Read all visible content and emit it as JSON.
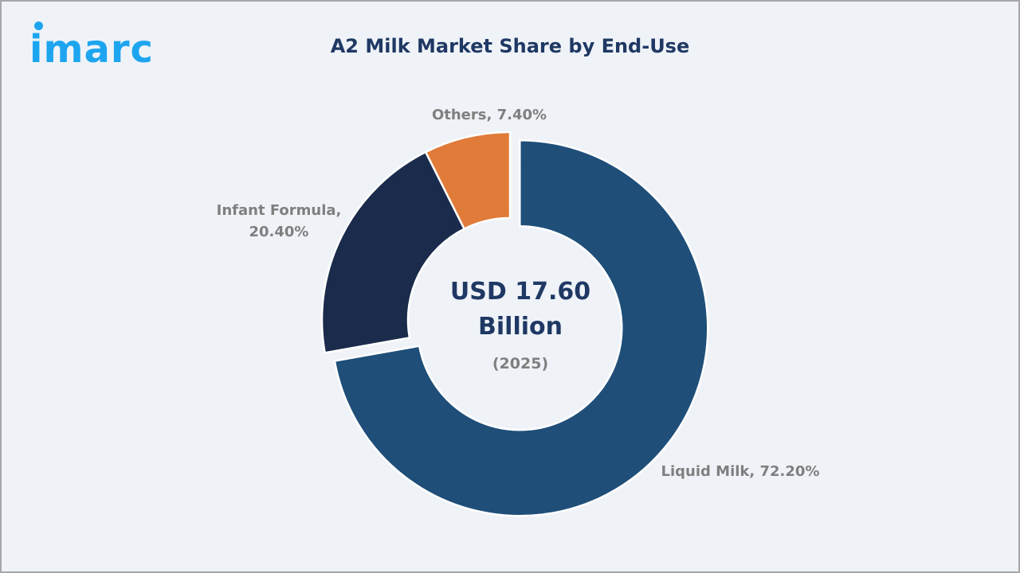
{
  "brand": {
    "logo_text": "imarc",
    "logo_color": "#1ea5f0"
  },
  "title": "A2 Milk Market Share by End-Use",
  "center": {
    "value_line1": "USD 17.60",
    "value_line2": "Billion",
    "year": "(2025)"
  },
  "labels": {
    "liquid_milk": "Liquid Milk, 72.20%",
    "infant_formula_line1": "Infant Formula,",
    "infant_formula_line2": "20.40%",
    "others": "Others, 7.40%"
  },
  "colors": {
    "liquid_milk": "#1f4e79",
    "infant_formula": "#1a2b4c",
    "others": "#e07b39",
    "background": "#eff3f8"
  },
  "chart_data": {
    "type": "pie",
    "subtype": "donut",
    "title": "A2 Milk Market Share by End-Use",
    "categories": [
      "Liquid Milk",
      "Infant Formula",
      "Others"
    ],
    "values": [
      72.2,
      20.4,
      7.4
    ],
    "unit": "%",
    "center_annotation": "USD 17.60 Billion (2025)",
    "exploded": [
      "Liquid Milk"
    ],
    "legend": "none (data labels)"
  }
}
